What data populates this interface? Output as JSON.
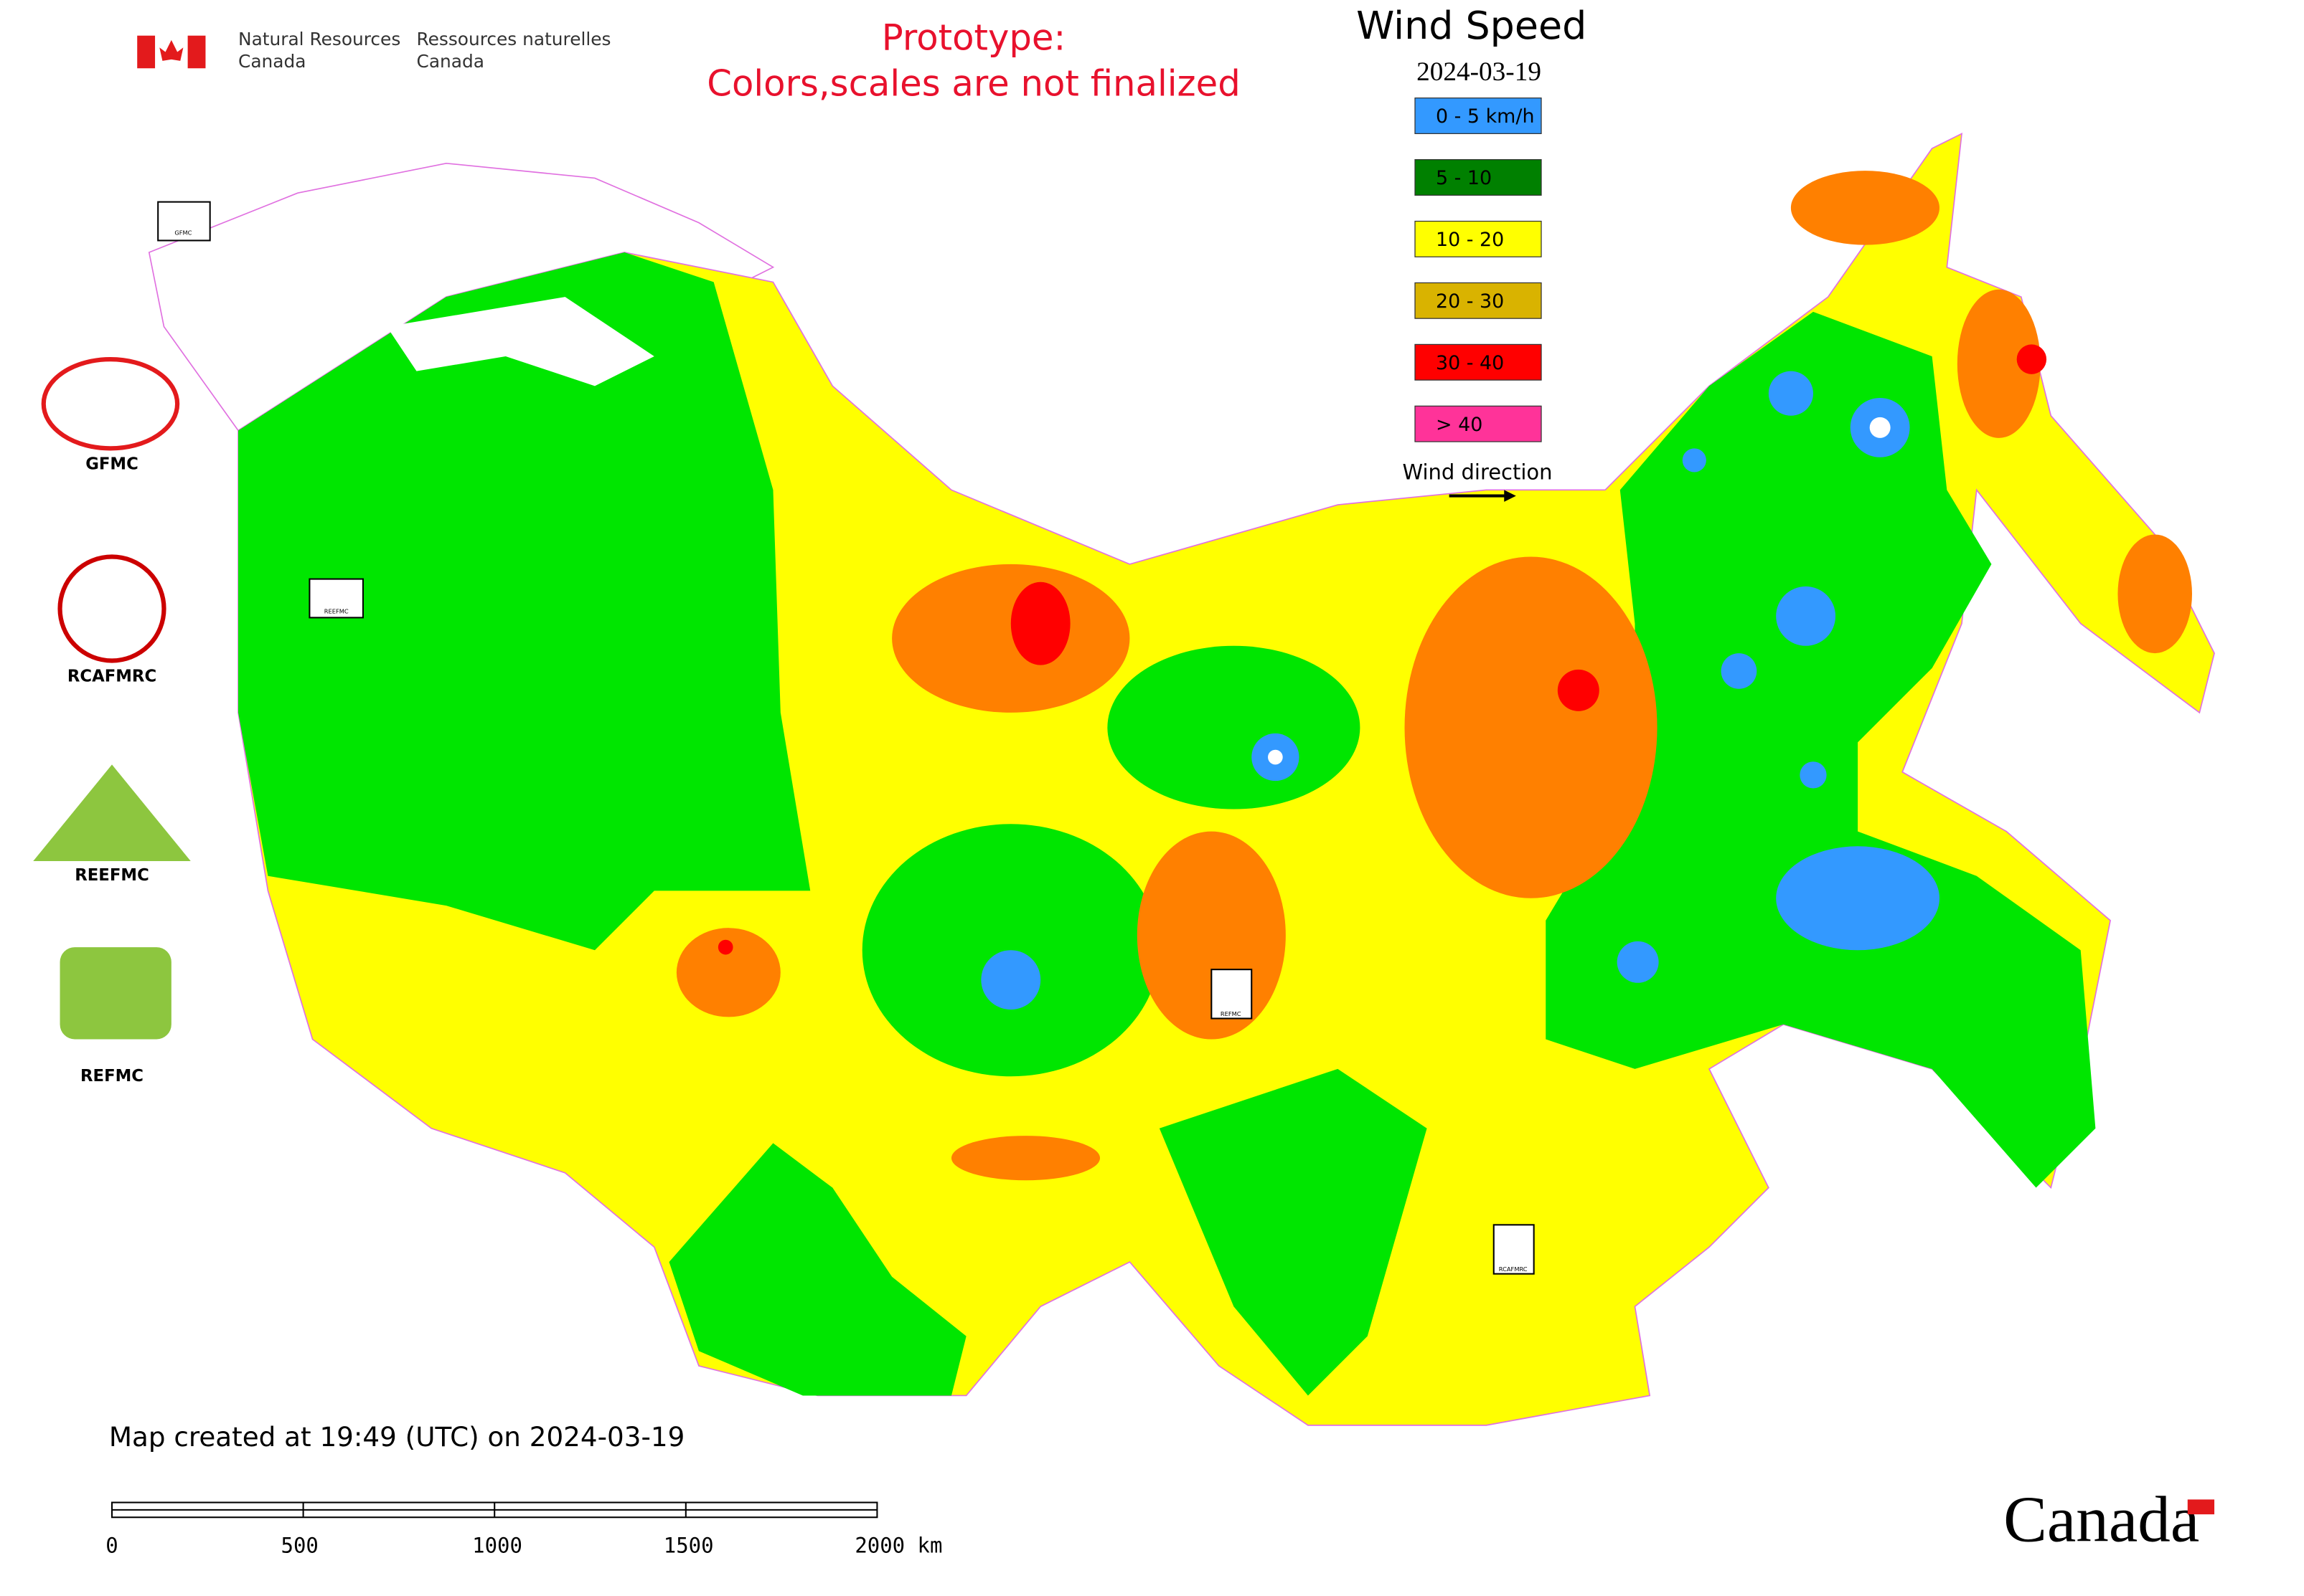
{
  "header": {
    "department_en": [
      "Natural Resources",
      "Canada"
    ],
    "department_fr": [
      "Ressources naturelles",
      "Canada"
    ],
    "notice": [
      "Prototype:",
      "Colors,scales are not finalized"
    ]
  },
  "legend": {
    "title": "Wind Speed",
    "date": "2024-03-19",
    "items": [
      {
        "label": "0 - 5 km/h",
        "color": "#3399ff"
      },
      {
        "label": "5 - 10",
        "color": "#008000"
      },
      {
        "label": "10 - 20",
        "color": "#ffff00"
      },
      {
        "label": "20 - 30",
        "color": "#d9b300"
      },
      {
        "label": "30 - 40",
        "color": "#ff0000"
      },
      {
        "label": "> 40",
        "color": "#ff3399"
      }
    ],
    "wind_direction": "Wind direction"
  },
  "logos": [
    {
      "label": "GFMC"
    },
    {
      "label": "RCAFMRC"
    },
    {
      "label": "REEFMC"
    },
    {
      "label": "REFMC"
    }
  ],
  "map_markers": [
    {
      "label": "GFMC"
    },
    {
      "label": "REEFMC"
    },
    {
      "label": "REFMC"
    },
    {
      "label": "RCAFMRC"
    }
  ],
  "footer": {
    "created": "Map created at 19:49 (UTC) on 2024-03-19",
    "scale_labels": [
      "0",
      "500",
      "1000",
      "1500",
      "2000 km"
    ],
    "wordmark": "Canada"
  }
}
